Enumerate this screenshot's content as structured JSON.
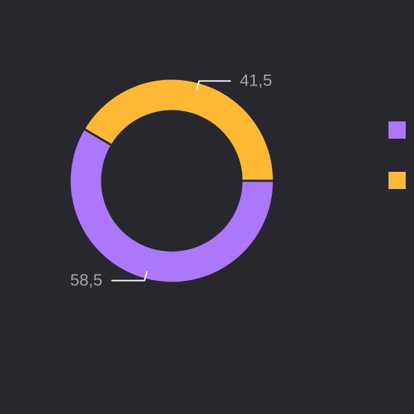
{
  "chart_data": {
    "type": "donut",
    "categories": [
      null,
      null
    ],
    "values": [
      58.5,
      41.5
    ],
    "value_labels": [
      "58,5",
      "41,5"
    ],
    "colors": [
      "#ad77fc",
      "#fdb933"
    ]
  }
}
